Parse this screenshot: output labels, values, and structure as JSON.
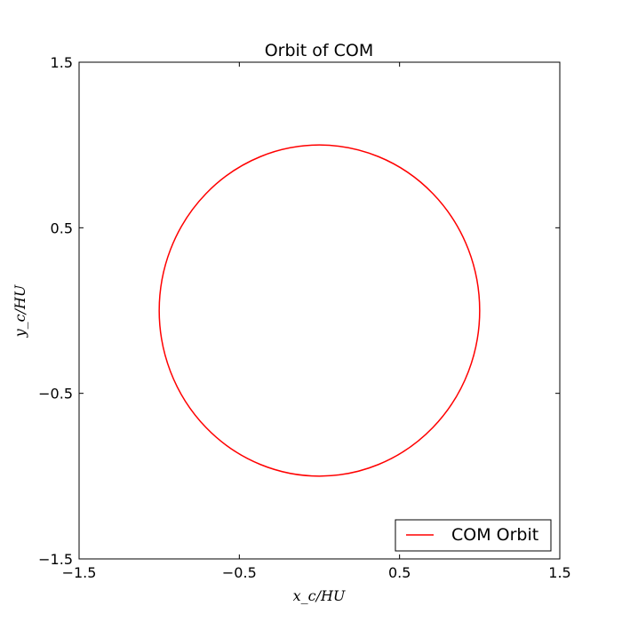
{
  "chart_data": {
    "type": "line",
    "title": "Orbit of COM",
    "xlabel": "x_c/HU",
    "ylabel": "y_c/HU",
    "xlim": [
      -1.5,
      1.5
    ],
    "ylim": [
      -1.5,
      1.5
    ],
    "xticks": [
      -1.5,
      -0.5,
      0.5,
      1.5
    ],
    "yticks": [
      -1.5,
      -0.5,
      0.5,
      1.5
    ],
    "xtick_labels": [
      "−1.5",
      "−0.5",
      "0.5",
      "1.5"
    ],
    "ytick_labels": [
      "−1.5",
      "−0.5",
      "0.5",
      "1.5"
    ],
    "grid": false,
    "legend_position": "lower-right",
    "series": [
      {
        "name": "COM Orbit",
        "color": "#ff0000",
        "shape": "ellipse",
        "center": [
          0.0,
          0.0
        ],
        "x_radius": 1.0,
        "y_radius": 1.0
      }
    ]
  }
}
